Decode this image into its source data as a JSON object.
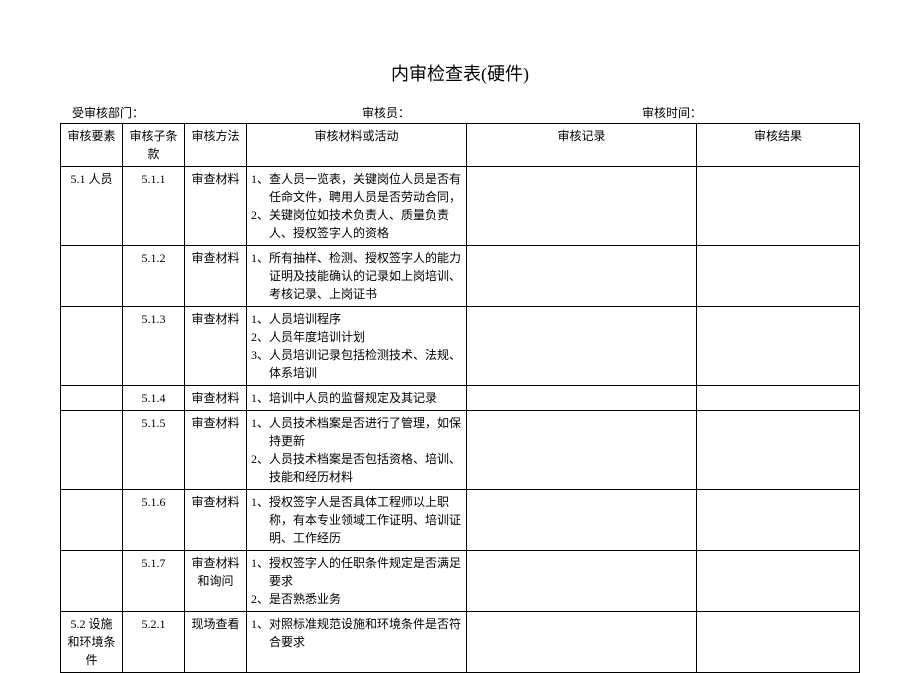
{
  "title": "内审检查表(硬件)",
  "meta": {
    "department_label": "受审核部门：",
    "auditor_label": "审核员：",
    "time_label": "审核时间："
  },
  "columns": {
    "element": "审核要素",
    "clause": "审核子条款",
    "method": "审核方法",
    "activity": "审核材料或活动",
    "record": "审核记录",
    "result": "审核结果"
  },
  "rows": [
    {
      "element": "5.1 人员",
      "clause": "5.1.1",
      "method": "审查材料",
      "activity": [
        "1、查人员一览表，关键岗位人员是否有任命文件，聘用人员是否劳动合同，",
        "2、关键岗位如技术负责人、质量负责人、授权签字人的资格"
      ]
    },
    {
      "element": "",
      "clause": "5.1.2",
      "method": "审查材料",
      "activity": [
        "1、所有抽样、检测、授权签字人的能力证明及技能确认的记录如上岗培训、考核记录、上岗证书"
      ]
    },
    {
      "element": "",
      "clause": "5.1.3",
      "method": "审查材料",
      "activity": [
        "1、人员培训程序",
        "2、人员年度培训计划",
        "3、人员培训记录包括检测技术、法规、体系培训"
      ]
    },
    {
      "element": "",
      "clause": "5.1.4",
      "method": "审查材料",
      "activity": [
        "1、培训中人员的监督规定及其记录"
      ]
    },
    {
      "element": "",
      "clause": "5.1.5",
      "method": "审查材料",
      "activity": [
        "1、人员技术档案是否进行了管理，如保持更新",
        "2、人员技术档案是否包括资格、培训、技能和经历材料"
      ]
    },
    {
      "element": "",
      "clause": "5.1.6",
      "method": "审查材料",
      "activity": [
        "1、授权签字人是否具体工程师以上职称，有本专业领域工作证明、培训证明、工作经历"
      ]
    },
    {
      "element": "",
      "clause": "5.1.7",
      "method": "审查材料和询问",
      "activity": [
        "1、授权签字人的任职条件规定是否满足要求",
        "2、是否熟悉业务"
      ]
    },
    {
      "element": "5.2 设施和环境条件",
      "clause": "5.2.1",
      "method": "现场查看",
      "activity": [
        "1、对照标准规范设施和环境条件是否符合要求"
      ]
    }
  ]
}
